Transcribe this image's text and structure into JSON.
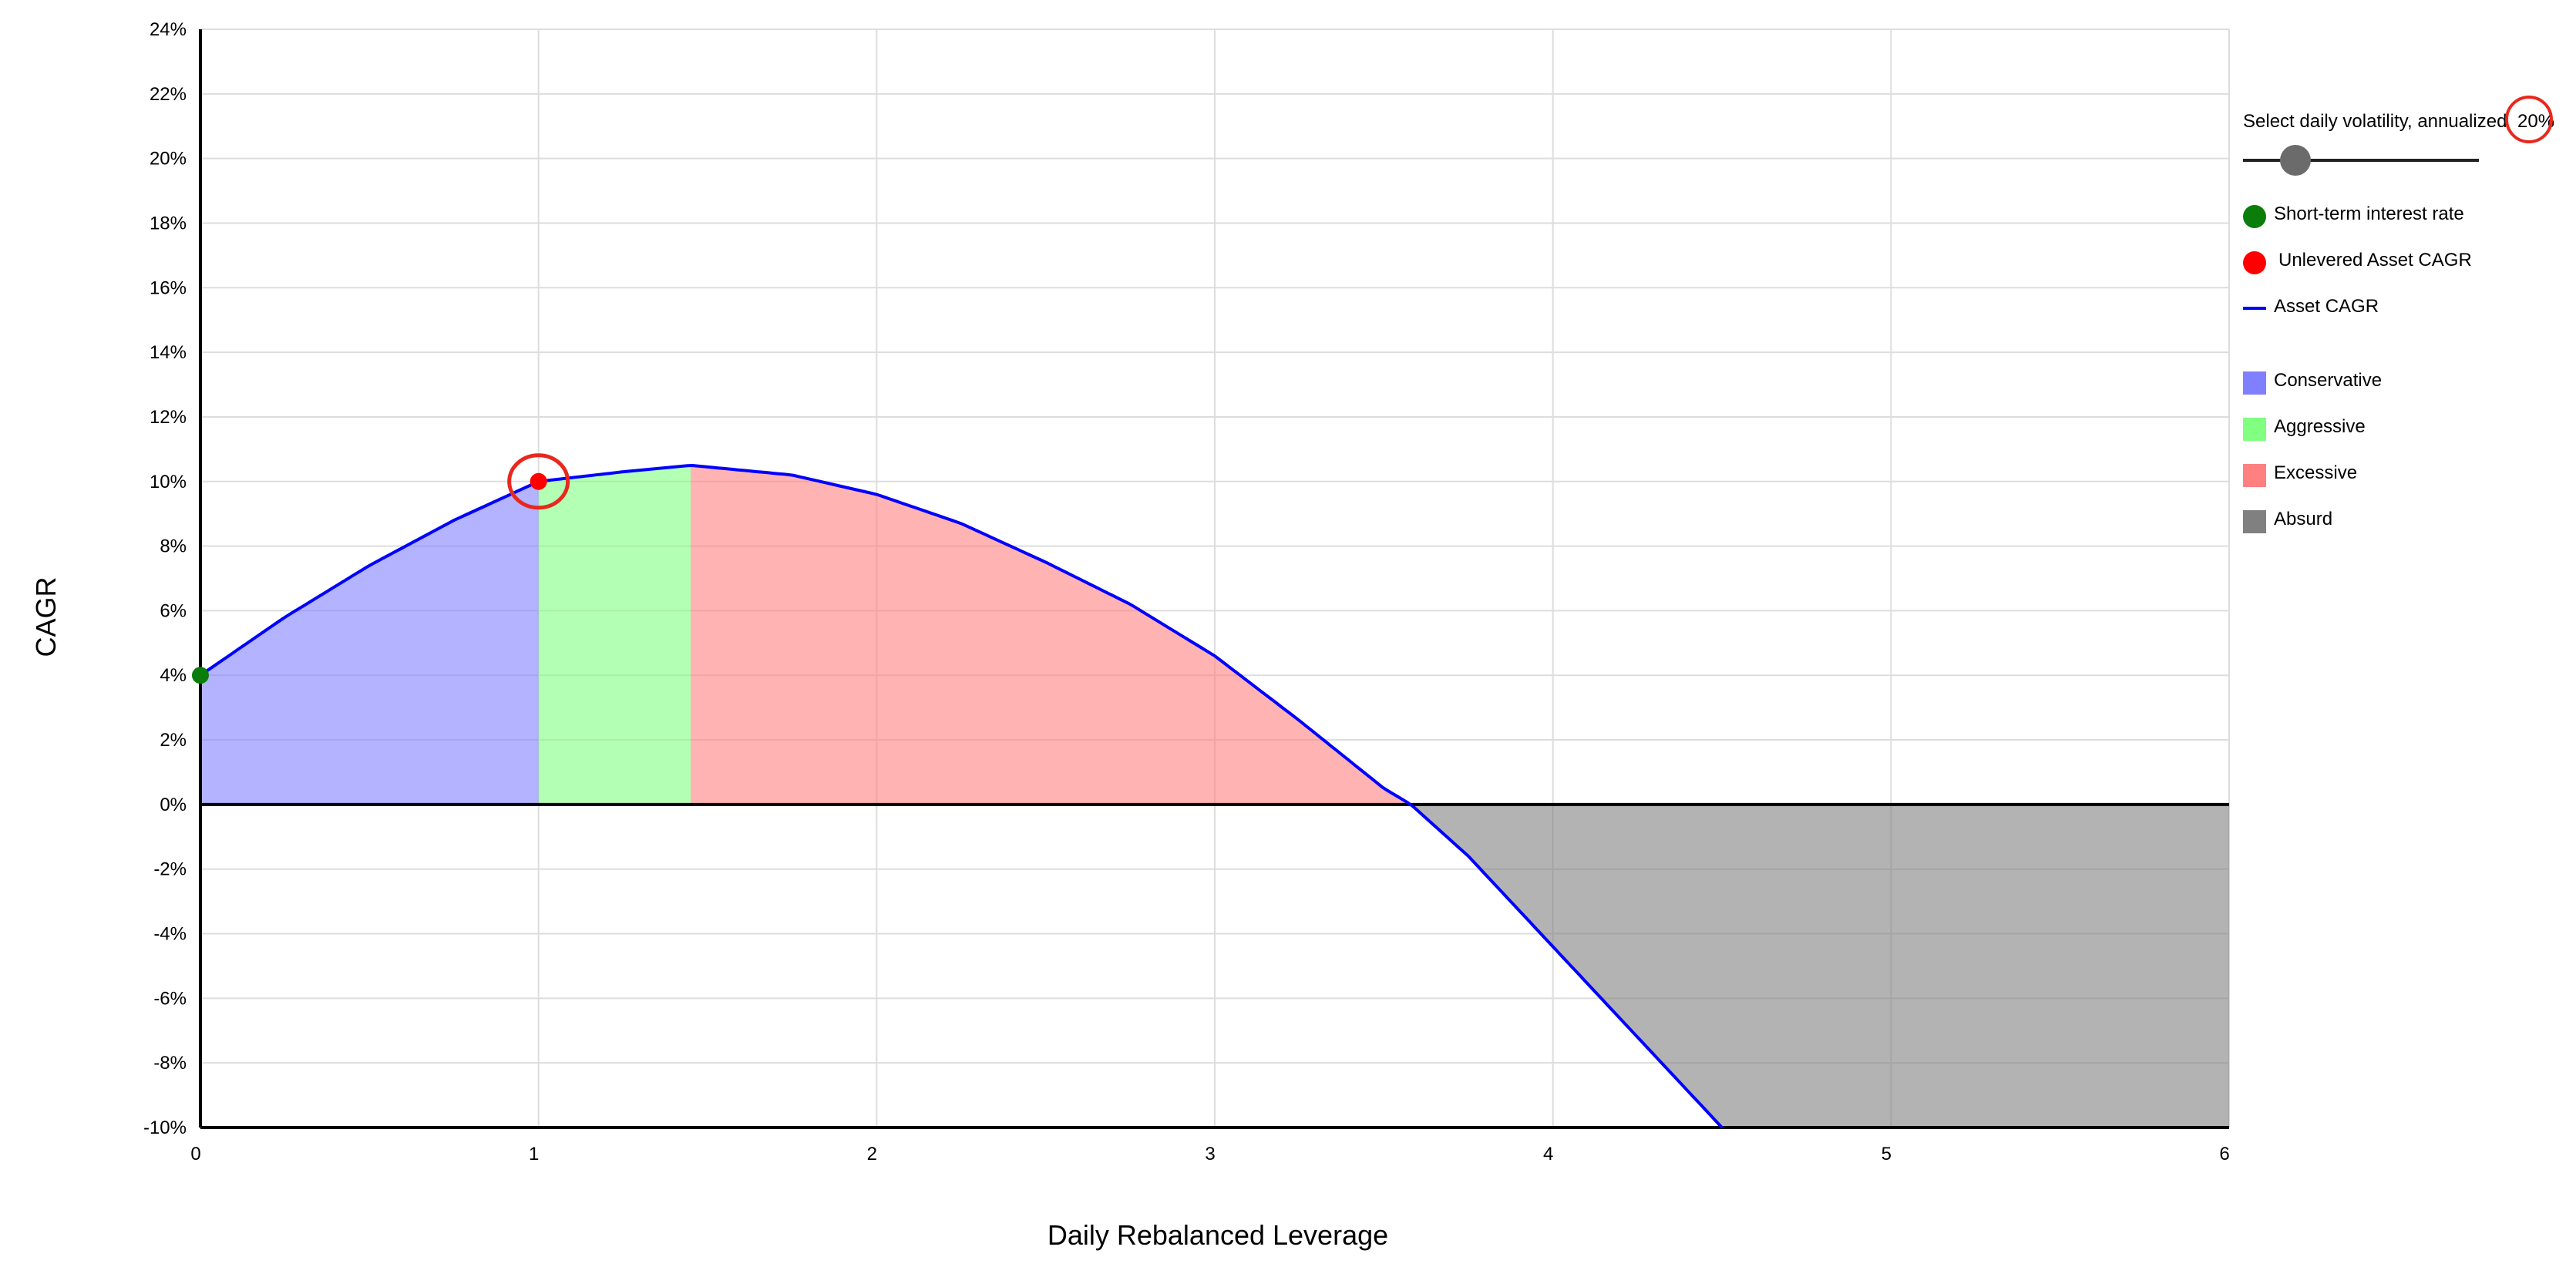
{
  "chart_data": {
    "type": "area",
    "title": "",
    "xlabel": "Daily Rebalanced Leverage",
    "ylabel": "CAGR",
    "xlim": [
      0,
      6
    ],
    "ylim": [
      -10,
      24
    ],
    "x_ticks": [
      "0",
      "1",
      "2",
      "3",
      "4",
      "5",
      "6"
    ],
    "y_ticks": [
      "24%",
      "22%",
      "20%",
      "18%",
      "16%",
      "14%",
      "12%",
      "10%",
      "8%",
      "6%",
      "4%",
      "2%",
      "0%",
      "-2%",
      "-4%",
      "-6%",
      "-8%",
      "-10%"
    ],
    "grid": true,
    "legend_position": "right",
    "volatility_pct": 20,
    "short_term_rate": {
      "x": 0,
      "y": 4
    },
    "unlevered_cagr": {
      "x": 1,
      "y": 10
    },
    "curve": {
      "name": "Asset CAGR",
      "x": [
        0,
        0.25,
        0.5,
        0.75,
        1.0,
        1.25,
        1.45,
        1.75,
        2.0,
        2.25,
        2.5,
        2.75,
        3.0,
        3.25,
        3.5,
        3.58,
        3.75,
        4.0,
        4.25,
        4.5
      ],
      "y": [
        4.0,
        5.8,
        7.4,
        8.8,
        10.0,
        10.3,
        10.5,
        10.2,
        9.6,
        8.7,
        7.5,
        6.2,
        4.6,
        2.6,
        0.5,
        0.0,
        -1.6,
        -4.4,
        -7.2,
        -10.0
      ]
    },
    "zones": [
      {
        "name": "Conservative",
        "from": 0,
        "to": 1.0,
        "color": "#8080ff"
      },
      {
        "name": "Aggressive",
        "from": 1.0,
        "to": 1.45,
        "color": "#80ff80"
      },
      {
        "name": "Excessive",
        "from": 1.45,
        "to": 3.58,
        "color": "#ff8080"
      },
      {
        "name": "Absurd",
        "from": 3.58,
        "to": 6,
        "color": "#808080"
      }
    ],
    "colors": {
      "curve": "#0000ff",
      "short_term_rate": "#0a7d0a",
      "unlevered": "#ff0000",
      "highlight": "#e8281e"
    }
  },
  "controls": {
    "volatility_label": "Select daily volatility, annualized",
    "volatility_value": "20%"
  },
  "legend": {
    "items": [
      {
        "label": "Short-term interest rate",
        "color": "#0a7d0a",
        "shape": "dot"
      },
      {
        "label": "Unlevered Asset CAGR",
        "color": "#ff0000",
        "shape": "dot"
      },
      {
        "label": "Asset CAGR",
        "color": "#0000ff",
        "shape": "line"
      }
    ],
    "zones": [
      {
        "label": "Conservative",
        "color": "#8080ff"
      },
      {
        "label": "Aggressive",
        "color": "#80ff80"
      },
      {
        "label": "Excessive",
        "color": "#ff8080"
      },
      {
        "label": "Absurd",
        "color": "#808080"
      }
    ]
  }
}
